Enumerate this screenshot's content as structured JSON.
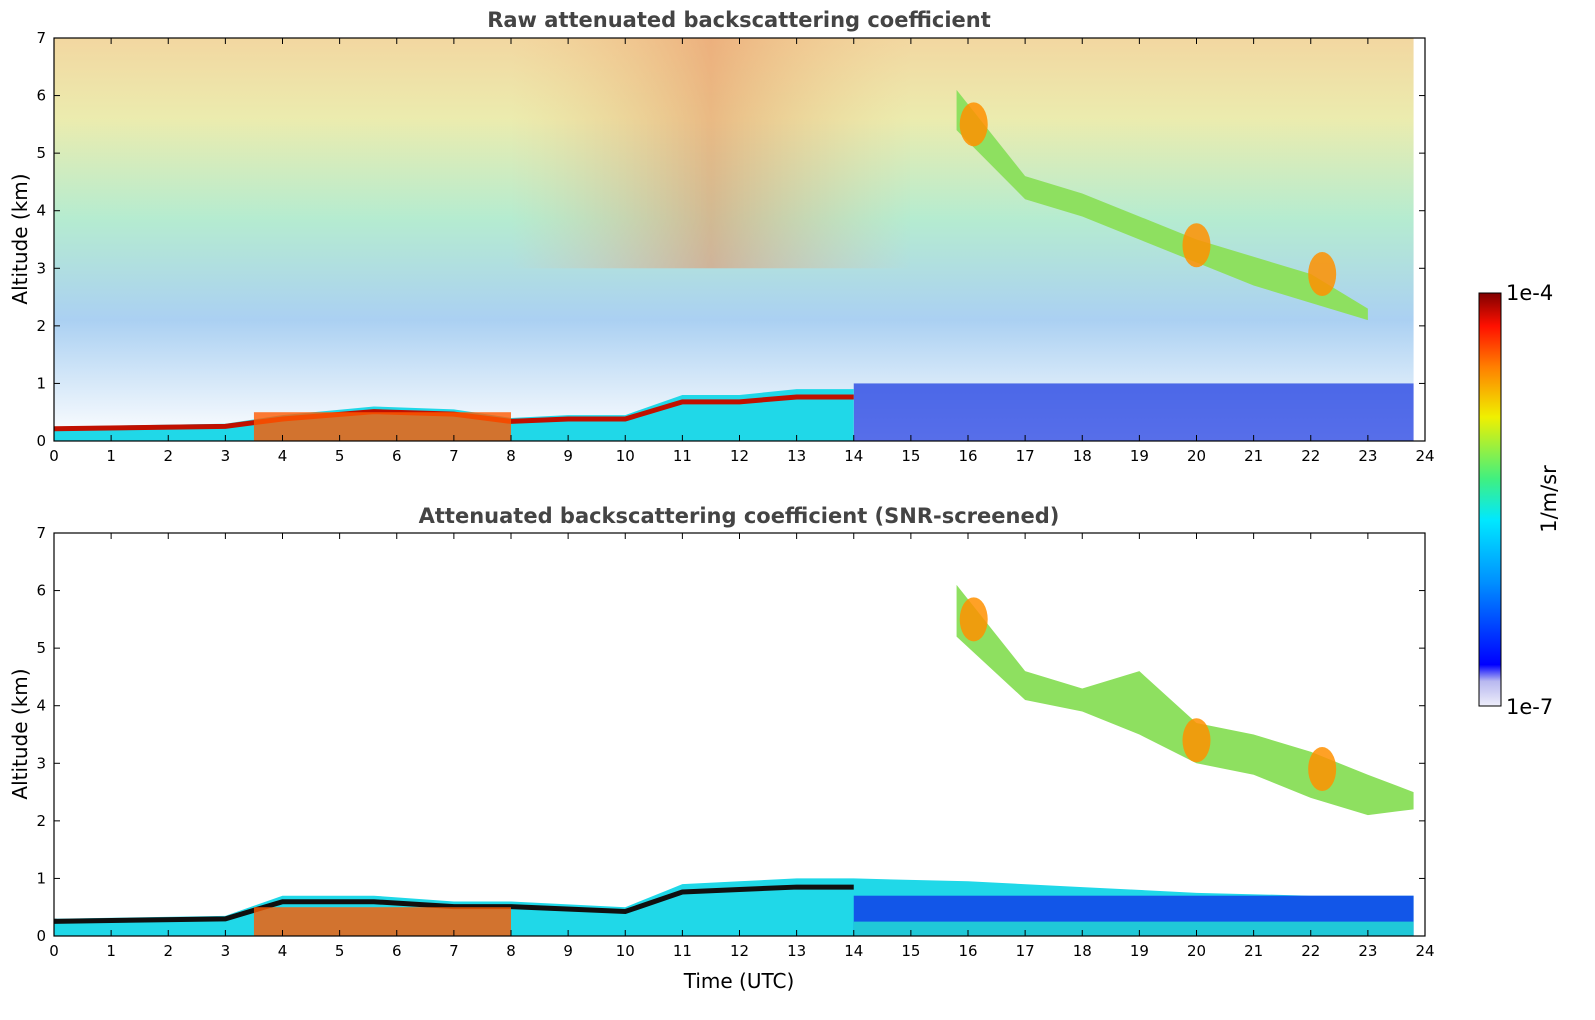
{
  "chart_data": [
    {
      "type": "heatmap",
      "title": "Raw attenuated backscattering coefficient",
      "xlabel": "",
      "ylabel": "Altitude (km)",
      "xlim": [
        0,
        24
      ],
      "ylim": [
        0,
        7
      ],
      "xticks": [
        "0",
        "1",
        "2",
        "3",
        "4",
        "5",
        "6",
        "7",
        "8",
        "9",
        "10",
        "11",
        "12",
        "13",
        "14",
        "15",
        "16",
        "17",
        "18",
        "19",
        "20",
        "21",
        "22",
        "23",
        "24"
      ],
      "yticks": [
        "0",
        "1",
        "2",
        "3",
        "4",
        "5",
        "6",
        "7"
      ],
      "log_color_scale": true,
      "features": {
        "boundary_layer_top_km": [
          [
            0,
            0.25
          ],
          [
            3,
            0.3
          ],
          [
            4,
            0.45
          ],
          [
            5.6,
            0.6
          ],
          [
            7,
            0.55
          ],
          [
            8,
            0.4
          ],
          [
            9,
            0.45
          ],
          [
            10,
            0.45
          ],
          [
            11,
            0.8
          ],
          [
            12,
            0.8
          ],
          [
            13,
            0.9
          ],
          [
            14,
            0.9
          ]
        ],
        "cloud_top_km": [
          [
            15.8,
            6.1
          ],
          [
            17,
            4.6
          ],
          [
            18,
            4.3
          ],
          [
            19,
            3.9
          ],
          [
            20,
            3.5
          ],
          [
            21,
            3.2
          ],
          [
            22,
            2.9
          ],
          [
            23,
            2.3
          ]
        ],
        "cloud_base_km": [
          [
            15.8,
            5.4
          ],
          [
            17,
            4.2
          ],
          [
            18,
            3.9
          ],
          [
            19,
            3.5
          ],
          [
            20,
            3.1
          ],
          [
            21,
            2.7
          ],
          [
            22,
            2.4
          ],
          [
            23,
            2.1
          ]
        ]
      }
    },
    {
      "type": "heatmap",
      "title": "Attenuated backscattering coefficient (SNR-screened)",
      "xlabel": "Time (UTC)",
      "ylabel": "Altitude (km)",
      "xlim": [
        0,
        24
      ],
      "ylim": [
        0,
        7
      ],
      "xticks": [
        "0",
        "1",
        "2",
        "3",
        "4",
        "5",
        "6",
        "7",
        "8",
        "9",
        "10",
        "11",
        "12",
        "13",
        "14",
        "15",
        "16",
        "17",
        "18",
        "19",
        "20",
        "21",
        "22",
        "23",
        "24"
      ],
      "yticks": [
        "0",
        "1",
        "2",
        "3",
        "4",
        "5",
        "6",
        "7"
      ],
      "log_color_scale": true,
      "features": {
        "boundary_layer_top_km": [
          [
            0,
            0.3
          ],
          [
            3,
            0.35
          ],
          [
            4,
            0.7
          ],
          [
            5.6,
            0.7
          ],
          [
            7,
            0.6
          ],
          [
            8,
            0.6
          ],
          [
            10,
            0.5
          ],
          [
            11,
            0.9
          ],
          [
            12,
            0.95
          ],
          [
            13,
            1.0
          ],
          [
            14,
            1.0
          ],
          [
            16,
            0.95
          ],
          [
            18,
            0.85
          ],
          [
            20,
            0.75
          ],
          [
            22,
            0.7
          ],
          [
            23.8,
            0.7
          ]
        ],
        "cloud_top_km": [
          [
            15.8,
            6.1
          ],
          [
            17,
            4.6
          ],
          [
            18,
            4.3
          ],
          [
            19,
            4.6
          ],
          [
            20,
            3.7
          ],
          [
            21,
            3.5
          ],
          [
            22,
            3.2
          ],
          [
            23,
            2.8
          ],
          [
            23.8,
            2.5
          ]
        ],
        "cloud_base_km": [
          [
            15.8,
            5.2
          ],
          [
            17,
            4.1
          ],
          [
            18,
            3.9
          ],
          [
            19,
            3.5
          ],
          [
            20,
            3.0
          ],
          [
            21,
            2.8
          ],
          [
            22,
            2.4
          ],
          [
            23,
            2.1
          ],
          [
            23.8,
            2.2
          ]
        ]
      }
    }
  ],
  "colorbar": {
    "label": "1/m/sr",
    "max_label": "1e-4",
    "min_label": "1e-7",
    "colors": [
      "#e8e8f8",
      "#c8c8f0",
      "#9090e8",
      "#0000ff",
      "#0040ff",
      "#0090ff",
      "#00d0ff",
      "#00f0c0",
      "#40f080",
      "#a0f040",
      "#f0f000",
      "#ffb000",
      "#ff6000",
      "#ff1000",
      "#c00000",
      "#800000"
    ]
  }
}
